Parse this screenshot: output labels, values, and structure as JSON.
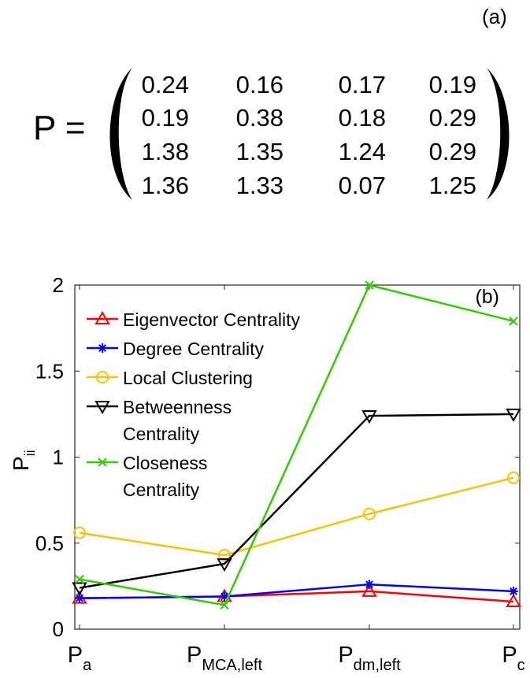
{
  "panel_a": {
    "label": "(a)",
    "lhs": "P =",
    "matrix": [
      [
        "0.24",
        "0.16",
        "0.17",
        "0.19"
      ],
      [
        "0.19",
        "0.38",
        "0.18",
        "0.29"
      ],
      [
        "1.38",
        "1.35",
        "1.24",
        "0.29"
      ],
      [
        "1.36",
        "1.33",
        "0.07",
        "1.25"
      ]
    ]
  },
  "chart_data": {
    "type": "line",
    "panel_label": "(b)",
    "ylabel_main": "P",
    "ylabel_sub": "ii",
    "xlabel": "",
    "ylim": [
      0,
      2
    ],
    "yticks": [
      "0",
      "0.5",
      "1",
      "1.5",
      "2"
    ],
    "yticks_values": [
      0,
      0.5,
      1,
      1.5,
      2
    ],
    "categories": [
      {
        "main": "P",
        "sub": "a"
      },
      {
        "main": "P",
        "sub": "MCA,left"
      },
      {
        "main": "P",
        "sub": "dm,left"
      },
      {
        "main": "P",
        "sub": "c"
      }
    ],
    "legend_position": "top-left",
    "series": [
      {
        "name_lines": [
          "Eigenvector Centrality"
        ],
        "color": "#ff0000",
        "marker": "triangle-up",
        "values": [
          0.18,
          0.19,
          0.22,
          0.16
        ]
      },
      {
        "name_lines": [
          "Degree Centrality"
        ],
        "color": "#0000ff",
        "marker": "star",
        "values": [
          0.18,
          0.19,
          0.26,
          0.22
        ]
      },
      {
        "name_lines": [
          "Local Clustering"
        ],
        "color": "#ffc000",
        "marker": "circle",
        "values": [
          0.56,
          0.43,
          0.67,
          0.88
        ]
      },
      {
        "name_lines": [
          "Betweenness",
          "Centrality"
        ],
        "color": "#000000",
        "marker": "triangle-down",
        "values": [
          0.24,
          0.38,
          1.24,
          1.25
        ]
      },
      {
        "name_lines": [
          "Closeness",
          "Centrality"
        ],
        "color": "#33cc00",
        "marker": "x",
        "values": [
          0.29,
          0.14,
          2.0,
          1.79
        ]
      }
    ]
  }
}
